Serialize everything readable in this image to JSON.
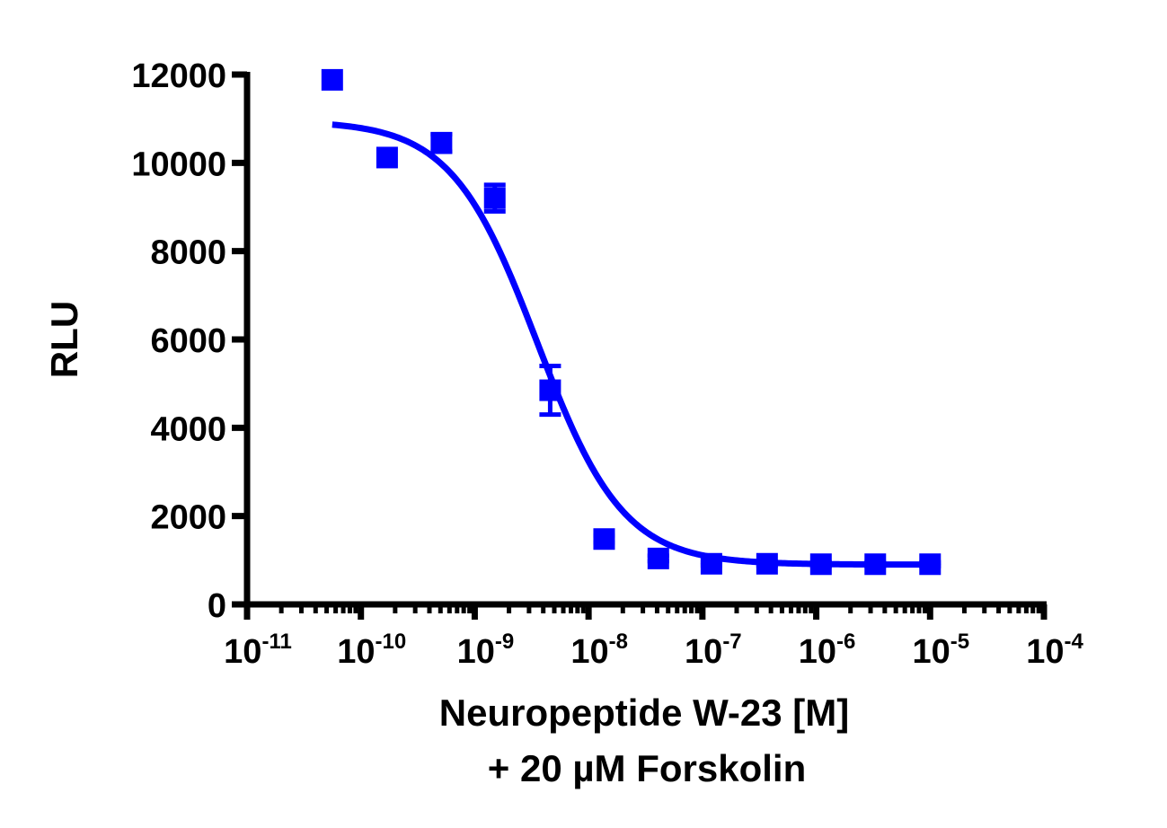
{
  "chart_data": {
    "type": "scatter",
    "title": "",
    "xlabel": "Neuropeptide W-23 [M]",
    "xlabel_line2": "+ 20 µM Forskolin",
    "ylabel": "RLU",
    "xscale": "log",
    "xlim": [
      1e-11,
      0.0001
    ],
    "ylim": [
      0,
      12000
    ],
    "x_ticks": [
      "10-11",
      "10-10",
      "10-9",
      "10-8",
      "10-7",
      "10-6",
      "10-5",
      "10-4"
    ],
    "x_tick_exponents": [
      -11,
      -10,
      -9,
      -8,
      -7,
      -6,
      -5,
      -4
    ],
    "y_ticks": [
      0,
      2000,
      4000,
      6000,
      8000,
      10000,
      12000
    ],
    "grid": false,
    "legend": null,
    "color": "#0000ff",
    "series": [
      {
        "name": "Neuropeptide W-23",
        "marker": "square",
        "x": [
          5.6e-11,
          1.7e-10,
          5.1e-10,
          1.5e-09,
          4.6e-09,
          1.37e-08,
          4.1e-08,
          1.2e-07,
          3.7e-07,
          1.1e-06,
          3.3e-06,
          1e-05
        ],
        "y": [
          11880,
          10120,
          10450,
          9200,
          4850,
          1480,
          1040,
          920,
          920,
          910,
          910,
          910
        ],
        "error": [
          0,
          0,
          200,
          300,
          550,
          80,
          60,
          40,
          40,
          40,
          40,
          40
        ]
      }
    ],
    "fit": {
      "model": "four-parameter logistic",
      "top": 10950,
      "bottom": 900,
      "log_ic50": -8.45,
      "hill": -1.15,
      "x_range": [
        5.6e-11,
        1e-05
      ]
    }
  }
}
